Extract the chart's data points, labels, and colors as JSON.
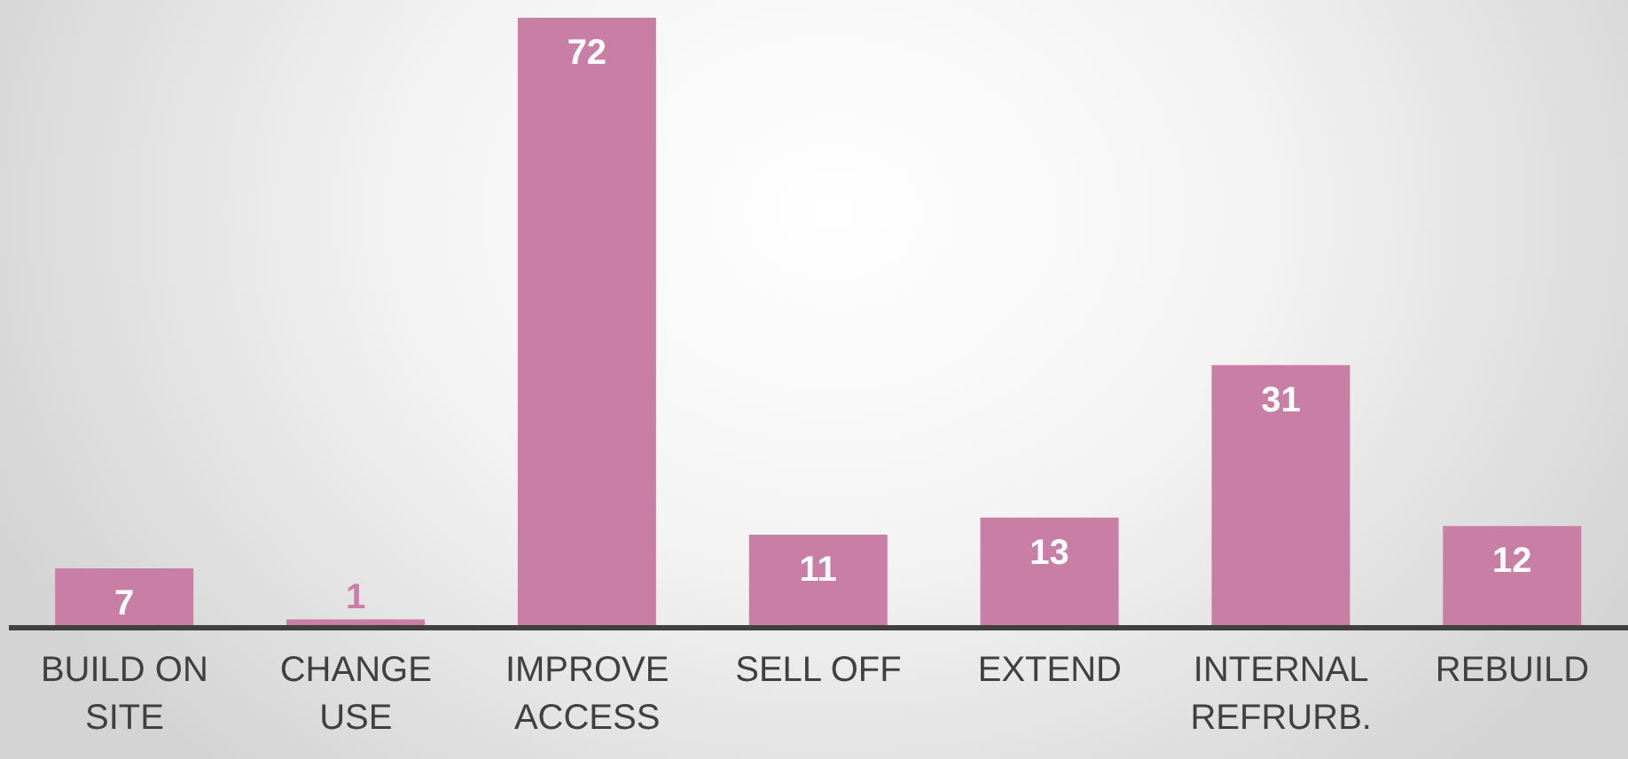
{
  "chart_data": {
    "type": "bar",
    "categories": [
      "BUILD ON SITE",
      "CHANGE USE",
      "IMPROVE ACCESS",
      "SELL OFF",
      "EXTEND",
      "INTERNAL REFRURB.",
      "REBUILD"
    ],
    "values": [
      7,
      1,
      72,
      11,
      13,
      31,
      12
    ],
    "color": "#c97ea6",
    "data_labels": true,
    "grid": false,
    "legend": false
  }
}
